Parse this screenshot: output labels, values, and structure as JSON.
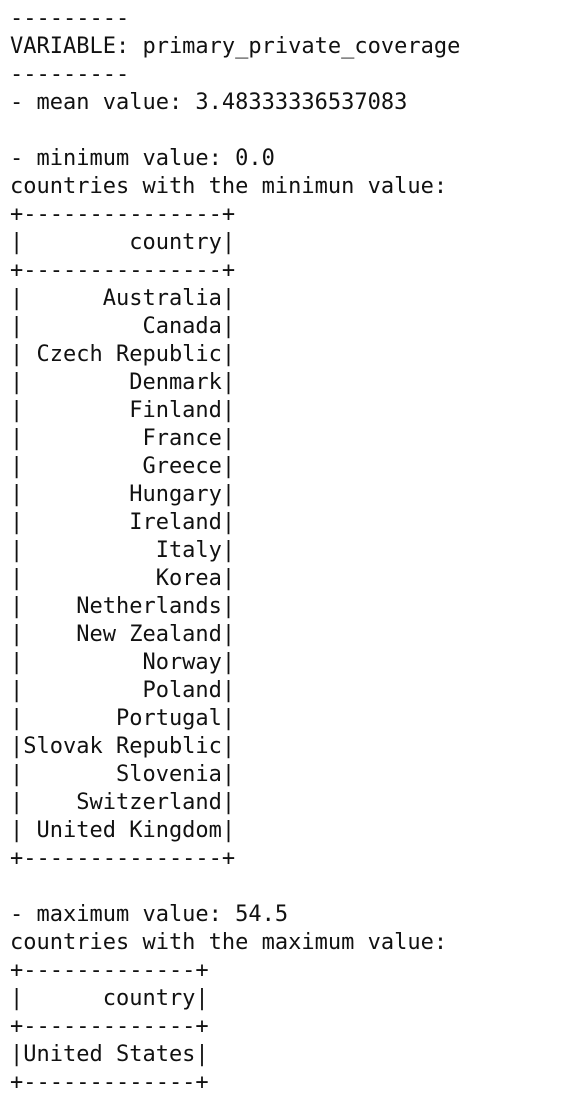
{
  "output": {
    "separator": "---------",
    "variable_line": "VARIABLE: primary_private_coverage",
    "mean_line": "- mean value: 3.48333336537083",
    "blank": "",
    "minimum": {
      "value_line": "- minimum value: 0.0",
      "heading_line": "countries with the minimun value:",
      "border": "+---------------+",
      "header_row": "|        country|",
      "rows": [
        "|      Australia|",
        "|         Canada|",
        "| Czech Republic|",
        "|        Denmark|",
        "|        Finland|",
        "|         France|",
        "|         Greece|",
        "|        Hungary|",
        "|        Ireland|",
        "|          Italy|",
        "|          Korea|",
        "|    Netherlands|",
        "|    New Zealand|",
        "|         Norway|",
        "|         Poland|",
        "|       Portugal|",
        "|Slovak Republic|",
        "|       Slovenia|",
        "|    Switzerland|",
        "| United Kingdom|"
      ]
    },
    "maximum": {
      "value_line": "- maximum value: 54.5",
      "heading_line": "countries with the maximum value:",
      "border": "+-------------+",
      "header_row": "|      country|",
      "rows": [
        "|United States|"
      ]
    }
  }
}
